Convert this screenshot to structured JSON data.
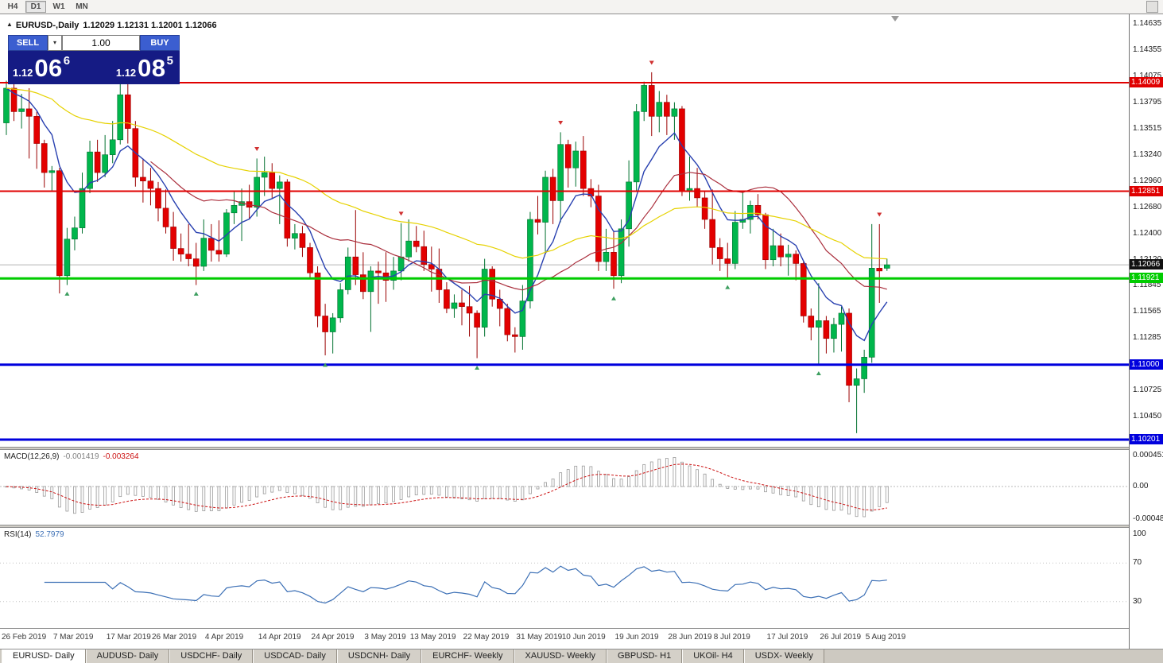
{
  "toolbar": {
    "timeframes": [
      {
        "label": "H4",
        "active": false
      },
      {
        "label": "D1",
        "active": true
      },
      {
        "label": "W1",
        "active": false
      },
      {
        "label": "MN",
        "active": false
      }
    ]
  },
  "chart": {
    "title": {
      "symbol": "EURUSD-,Daily",
      "ohlc": "1.12029 1.12131 1.12001 1.12066"
    },
    "trade_panel": {
      "sell_label": "SELL",
      "buy_label": "BUY",
      "volume": "1.00",
      "dropdown_icon": "▾",
      "sell_price": {
        "base": "1.12",
        "big": "06",
        "pip": "6"
      },
      "buy_price": {
        "base": "1.12",
        "big": "08",
        "pip": "5"
      }
    },
    "price_ticks": [
      "1.14635",
      "1.14355",
      "1.14075",
      "1.13795",
      "1.13515",
      "1.13240",
      "1.12960",
      "1.12680",
      "1.12400",
      "1.12120",
      "1.11845",
      "1.11565",
      "1.11285",
      "1.10725",
      "1.10450"
    ],
    "hlines": [
      {
        "price": 1.14009,
        "label": "1.14009",
        "color": "#e00000",
        "width": 2
      },
      {
        "price": 1.12851,
        "label": "1.12851",
        "color": "#e00000",
        "width": 2
      },
      {
        "price": 1.11921,
        "label": "1.11921",
        "color": "#00cc00",
        "width": 3
      },
      {
        "price": 1.11,
        "label": "1.11000",
        "color": "#0000dd",
        "width": 3
      },
      {
        "price": 1.10201,
        "label": "1.10201",
        "color": "#0000dd",
        "width": 3
      }
    ],
    "current_price": {
      "value": 1.12066,
      "label": "1.12066"
    }
  },
  "chart_data": {
    "type": "candlestick",
    "symbol": "EURUSD",
    "timeframe": "Daily",
    "date_range": "26 Feb 2019 - 7 Aug 2019",
    "up_color": "#00b64c",
    "down_color": "#e30000",
    "moving_averages": [
      {
        "kind": "ema",
        "period": 8,
        "color": "#2840b0"
      },
      {
        "kind": "sma",
        "period": 20,
        "color": "#aa2e3c"
      },
      {
        "kind": "ema",
        "period": 50,
        "color": "#e6d200"
      }
    ],
    "candles": [
      [
        1.1358,
        1.1403,
        1.1345,
        1.1395
      ],
      [
        1.1395,
        1.1404,
        1.136,
        1.137
      ],
      [
        1.137,
        1.1389,
        1.1352,
        1.1373
      ],
      [
        1.1373,
        1.1395,
        1.132,
        1.1365
      ],
      [
        1.1365,
        1.137,
        1.1309,
        1.1336
      ],
      [
        1.1336,
        1.134,
        1.1289,
        1.1305
      ],
      [
        1.1305,
        1.1312,
        1.1285,
        1.1307
      ],
      [
        1.1307,
        1.131,
        1.1176,
        1.1195
      ],
      [
        1.1195,
        1.1246,
        1.1185,
        1.1234
      ],
      [
        1.1234,
        1.1258,
        1.1222,
        1.1246
      ],
      [
        1.1246,
        1.1305,
        1.124,
        1.1288
      ],
      [
        1.1288,
        1.1339,
        1.1283,
        1.1327
      ],
      [
        1.1327,
        1.134,
        1.1295,
        1.1305
      ],
      [
        1.1305,
        1.1345,
        1.13,
        1.1324
      ],
      [
        1.1324,
        1.136,
        1.1315,
        1.134
      ],
      [
        1.134,
        1.14,
        1.1335,
        1.1388
      ],
      [
        1.1388,
        1.1405,
        1.1336,
        1.1352
      ],
      [
        1.1352,
        1.136,
        1.129,
        1.13
      ],
      [
        1.13,
        1.132,
        1.1273,
        1.1296
      ],
      [
        1.1296,
        1.131,
        1.127,
        1.1288
      ],
      [
        1.1288,
        1.1295,
        1.1253,
        1.1267
      ],
      [
        1.1267,
        1.1287,
        1.124,
        1.1247
      ],
      [
        1.1247,
        1.1263,
        1.1211,
        1.1224
      ],
      [
        1.1224,
        1.124,
        1.121,
        1.1218
      ],
      [
        1.1218,
        1.125,
        1.1205,
        1.1213
      ],
      [
        1.1213,
        1.123,
        1.1185,
        1.1205
      ],
      [
        1.1205,
        1.1255,
        1.12,
        1.1235
      ],
      [
        1.1235,
        1.125,
        1.121,
        1.1222
      ],
      [
        1.1222,
        1.1254,
        1.121,
        1.1218
      ],
      [
        1.1218,
        1.1266,
        1.1215,
        1.1262
      ],
      [
        1.1262,
        1.1285,
        1.125,
        1.127
      ],
      [
        1.127,
        1.1288,
        1.1232,
        1.1274
      ],
      [
        1.1274,
        1.1292,
        1.1255,
        1.1268
      ],
      [
        1.1268,
        1.132,
        1.1258,
        1.13
      ],
      [
        1.13,
        1.1322,
        1.128,
        1.1305
      ],
      [
        1.1305,
        1.1315,
        1.1278,
        1.1288
      ],
      [
        1.1288,
        1.1302,
        1.125,
        1.1295
      ],
      [
        1.1295,
        1.1298,
        1.1226,
        1.1235
      ],
      [
        1.1235,
        1.125,
        1.1223,
        1.124
      ],
      [
        1.124,
        1.1248,
        1.1215,
        1.1225
      ],
      [
        1.1225,
        1.123,
        1.1192,
        1.1198
      ],
      [
        1.1198,
        1.1205,
        1.114,
        1.1152
      ],
      [
        1.1152,
        1.1165,
        1.111,
        1.1135
      ],
      [
        1.1135,
        1.1155,
        1.1112,
        1.115
      ],
      [
        1.115,
        1.1187,
        1.1145,
        1.118
      ],
      [
        1.118,
        1.1225,
        1.1175,
        1.1215
      ],
      [
        1.1215,
        1.1265,
        1.1185,
        1.1196
      ],
      [
        1.1196,
        1.122,
        1.117,
        1.1178
      ],
      [
        1.1178,
        1.1205,
        1.1135,
        1.12
      ],
      [
        1.12,
        1.121,
        1.1165,
        1.1198
      ],
      [
        1.1198,
        1.122,
        1.1167,
        1.119
      ],
      [
        1.119,
        1.1215,
        1.118,
        1.12
      ],
      [
        1.12,
        1.1251,
        1.119,
        1.1215
      ],
      [
        1.1215,
        1.1255,
        1.121,
        1.1232
      ],
      [
        1.1232,
        1.1248,
        1.122,
        1.1226
      ],
      [
        1.1226,
        1.1243,
        1.12,
        1.1207
      ],
      [
        1.1207,
        1.1226,
        1.1178,
        1.1202
      ],
      [
        1.1202,
        1.1224,
        1.1166,
        1.118
      ],
      [
        1.118,
        1.1188,
        1.1155,
        1.116
      ],
      [
        1.116,
        1.1175,
        1.115,
        1.1166
      ],
      [
        1.1166,
        1.118,
        1.1142,
        1.1162
      ],
      [
        1.1162,
        1.1184,
        1.113,
        1.1155
      ],
      [
        1.1155,
        1.1158,
        1.1107,
        1.114
      ],
      [
        1.114,
        1.1213,
        1.113,
        1.1202
      ],
      [
        1.1202,
        1.1205,
        1.1162,
        1.117
      ],
      [
        1.117,
        1.118,
        1.1141,
        1.116
      ],
      [
        1.116,
        1.1165,
        1.1125,
        1.1132
      ],
      [
        1.1132,
        1.114,
        1.1113,
        1.113
      ],
      [
        1.113,
        1.1185,
        1.1116,
        1.1168
      ],
      [
        1.1168,
        1.1263,
        1.116,
        1.1255
      ],
      [
        1.1255,
        1.128,
        1.1239,
        1.1252
      ],
      [
        1.1252,
        1.1307,
        1.122,
        1.13
      ],
      [
        1.13,
        1.1309,
        1.125,
        1.1275
      ],
      [
        1.1275,
        1.1348,
        1.1252,
        1.1335
      ],
      [
        1.1335,
        1.134,
        1.1289,
        1.131
      ],
      [
        1.131,
        1.1338,
        1.129,
        1.1328
      ],
      [
        1.1328,
        1.1344,
        1.128,
        1.1288
      ],
      [
        1.1288,
        1.1298,
        1.1268,
        1.128
      ],
      [
        1.128,
        1.1292,
        1.12,
        1.121
      ],
      [
        1.121,
        1.1245,
        1.12,
        1.122
      ],
      [
        1.122,
        1.1243,
        1.1181,
        1.1195
      ],
      [
        1.1195,
        1.1255,
        1.1187,
        1.1245
      ],
      [
        1.1245,
        1.1318,
        1.1226,
        1.1295
      ],
      [
        1.1295,
        1.1378,
        1.1285,
        1.137
      ],
      [
        1.137,
        1.1402,
        1.136,
        1.1398
      ],
      [
        1.1398,
        1.1412,
        1.1344,
        1.1365
      ],
      [
        1.1365,
        1.1392,
        1.1348,
        1.138
      ],
      [
        1.138,
        1.1388,
        1.1345,
        1.1365
      ],
      [
        1.1365,
        1.138,
        1.134,
        1.1373
      ],
      [
        1.1373,
        1.1376,
        1.128,
        1.1285
      ],
      [
        1.1285,
        1.1322,
        1.1275,
        1.1288
      ],
      [
        1.1288,
        1.131,
        1.1268,
        1.1278
      ],
      [
        1.1278,
        1.1285,
        1.1245,
        1.1255
      ],
      [
        1.1255,
        1.1287,
        1.1207,
        1.1225
      ],
      [
        1.1225,
        1.1235,
        1.12,
        1.1213
      ],
      [
        1.1213,
        1.123,
        1.1193,
        1.1208
      ],
      [
        1.1208,
        1.1264,
        1.1202,
        1.1252
      ],
      [
        1.1252,
        1.1285,
        1.1245,
        1.1255
      ],
      [
        1.1255,
        1.1275,
        1.124,
        1.127
      ],
      [
        1.127,
        1.1282,
        1.1255,
        1.126
      ],
      [
        1.126,
        1.1262,
        1.1202,
        1.1212
      ],
      [
        1.1212,
        1.1245,
        1.1205,
        1.1227
      ],
      [
        1.1227,
        1.124,
        1.1205,
        1.1215
      ],
      [
        1.1215,
        1.1228,
        1.1195,
        1.1218
      ],
      [
        1.1218,
        1.1222,
        1.119,
        1.1208
      ],
      [
        1.1208,
        1.121,
        1.1145,
        1.1152
      ],
      [
        1.1152,
        1.116,
        1.1126,
        1.114
      ],
      [
        1.114,
        1.1187,
        1.1101,
        1.1147
      ],
      [
        1.1147,
        1.1152,
        1.1112,
        1.1128
      ],
      [
        1.1128,
        1.115,
        1.1113,
        1.1143
      ],
      [
        1.1143,
        1.1162,
        1.1114,
        1.1155
      ],
      [
        1.1155,
        1.116,
        1.106,
        1.1078
      ],
      [
        1.1078,
        1.1096,
        1.1027,
        1.1085
      ],
      [
        1.1085,
        1.1116,
        1.107,
        1.1108
      ],
      [
        1.1108,
        1.125,
        1.1102,
        1.1203
      ],
      [
        1.1203,
        1.125,
        1.1166,
        1.12
      ],
      [
        1.12029,
        1.12131,
        1.12001,
        1.12066
      ]
    ],
    "markers": [
      {
        "bar": 8,
        "price": 1.1178,
        "dir": "up"
      },
      {
        "bar": 16,
        "price": 1.1413,
        "dir": "down"
      },
      {
        "bar": 25,
        "price": 1.1178,
        "dir": "up"
      },
      {
        "bar": 33,
        "price": 1.1328,
        "dir": "down"
      },
      {
        "bar": 42,
        "price": 1.1102,
        "dir": "up"
      },
      {
        "bar": 52,
        "price": 1.1259,
        "dir": "down"
      },
      {
        "bar": 62,
        "price": 1.1099,
        "dir": "up"
      },
      {
        "bar": 73,
        "price": 1.1356,
        "dir": "down"
      },
      {
        "bar": 80,
        "price": 1.1173,
        "dir": "up"
      },
      {
        "bar": 85,
        "price": 1.142,
        "dir": "down"
      },
      {
        "bar": 95,
        "price": 1.1185,
        "dir": "up"
      },
      {
        "bar": 107,
        "price": 1.1093,
        "dir": "up"
      },
      {
        "bar": 115,
        "price": 1.1258,
        "dir": "down"
      }
    ]
  },
  "indicators": {
    "macd": {
      "name": "MACD(12,26,9)",
      "value_main": "-0.001419",
      "value_signal": "-0.003264",
      "axis": [
        "0.0004517",
        "0.00",
        "-0.0004806"
      ],
      "fast": 12,
      "slow": 26,
      "signal": 9,
      "histogram_color": "#9a9a9a",
      "signal_color": "#cc1111"
    },
    "rsi": {
      "name": "RSI(14)",
      "value": "52.7979",
      "axis": [
        "100",
        "70",
        "30"
      ],
      "period": 14,
      "levels": [
        70,
        30
      ],
      "line_color": "#3b6fb5"
    }
  },
  "date_axis": {
    "labels": [
      {
        "text": "26 Feb 2019",
        "bar": 0
      },
      {
        "text": "7 Mar 2019",
        "bar": 7
      },
      {
        "text": "17 Mar 2019",
        "bar": 14
      },
      {
        "text": "26 Mar 2019",
        "bar": 20
      },
      {
        "text": "4 Apr 2019",
        "bar": 27
      },
      {
        "text": "14 Apr 2019",
        "bar": 34
      },
      {
        "text": "24 Apr 2019",
        "bar": 41
      },
      {
        "text": "3 May 2019",
        "bar": 48
      },
      {
        "text": "13 May 2019",
        "bar": 54
      },
      {
        "text": "22 May 2019",
        "bar": 61
      },
      {
        "text": "31 May 2019",
        "bar": 68
      },
      {
        "text": "10 Jun 2019",
        "bar": 74
      },
      {
        "text": "19 Jun 2019",
        "bar": 81
      },
      {
        "text": "28 Jun 2019",
        "bar": 88
      },
      {
        "text": "8 Jul 2019",
        "bar": 94
      },
      {
        "text": "17 Jul 2019",
        "bar": 101
      },
      {
        "text": "26 Jul 2019",
        "bar": 108
      },
      {
        "text": "5 Aug 2019",
        "bar": 114
      }
    ]
  },
  "tabs": [
    {
      "label": "EURUSD- Daily",
      "active": true
    },
    {
      "label": "AUDUSD- Daily",
      "active": false
    },
    {
      "label": "USDCHF- Daily",
      "active": false
    },
    {
      "label": "USDCAD- Daily",
      "active": false
    },
    {
      "label": "USDCNH- Daily",
      "active": false
    },
    {
      "label": "EURCHF- Weekly",
      "active": false
    },
    {
      "label": "XAUUSD- Weekly",
      "active": false
    },
    {
      "label": "GBPUSD- H1",
      "active": false
    },
    {
      "label": "UKOil- H4",
      "active": false
    },
    {
      "label": "USDX- Weekly",
      "active": false
    }
  ]
}
